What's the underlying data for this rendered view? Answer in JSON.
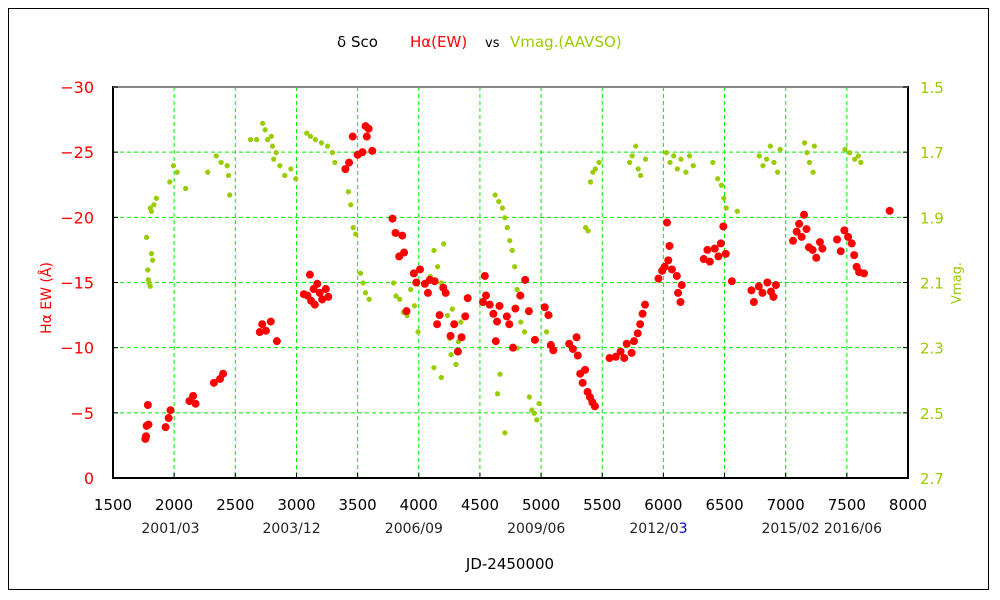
{
  "chart_data": {
    "type": "scatter",
    "title": {
      "star": "δ Sco",
      "series1": "Hα(EW)",
      "vs": "vs",
      "series2": "Vmag.(AAVSO)"
    },
    "xlabel": "JD-2450000",
    "ylabel_left": "Hα EW (Å)",
    "ylabel_right": "Vmag.",
    "xlim": [
      1500,
      8000
    ],
    "ylim_left": [
      0,
      -30
    ],
    "ylim_right": [
      2.7,
      1.5
    ],
    "grid": true,
    "x_ticks": [
      "1500",
      "2000",
      "2500",
      "3000",
      "3500",
      "4000",
      "4500",
      "5000",
      "5500",
      "6000",
      "6500",
      "7000",
      "7500",
      "8000"
    ],
    "x_tick_values": [
      1500,
      2000,
      2500,
      3000,
      3500,
      4000,
      4500,
      5000,
      5500,
      6000,
      6500,
      7000,
      7500,
      8000
    ],
    "y_left_ticks": [
      "-30",
      "-25",
      "-20",
      "-15",
      "-10",
      "-5",
      "0"
    ],
    "y_left_tick_values": [
      -30,
      -25,
      -20,
      -15,
      -10,
      -5,
      0
    ],
    "y_right_ticks": [
      "1.5",
      "1.7",
      "1.9",
      "2.1",
      "2.3",
      "2.5",
      "2.7"
    ],
    "y_right_tick_values": [
      1.5,
      1.7,
      1.9,
      2.1,
      2.3,
      2.5,
      2.7
    ],
    "date_labels": [
      {
        "jd": 1970,
        "text": "2001/03"
      },
      {
        "jd": 2960,
        "text": "2003/12"
      },
      {
        "jd": 3960,
        "text": "2006/09"
      },
      {
        "jd": 4960,
        "text": "2009/06"
      },
      {
        "jd": 5960,
        "text": "2012/03",
        "highlight_tail": "3"
      },
      {
        "jd": 7040,
        "text": "2015/02"
      },
      {
        "jd": 7550,
        "text": "2016/06"
      }
    ],
    "colors": {
      "halpha": "#ff0000",
      "vmag": "#99cc00",
      "grid": "#00ee00",
      "date_highlight": "#0000cc"
    },
    "series": [
      {
        "name": "Hα(EW)",
        "axis": "left",
        "points": [
          [
            1765,
            -3.0
          ],
          [
            1770,
            -3.2
          ],
          [
            1775,
            -4.0
          ],
          [
            1785,
            -5.6
          ],
          [
            1790,
            -4.1
          ],
          [
            1930,
            -3.9
          ],
          [
            1955,
            -4.6
          ],
          [
            1970,
            -5.2
          ],
          [
            2125,
            -5.9
          ],
          [
            2155,
            -6.3
          ],
          [
            2175,
            -5.7
          ],
          [
            2325,
            -7.3
          ],
          [
            2375,
            -7.6
          ],
          [
            2400,
            -8.0
          ],
          [
            2700,
            -11.2
          ],
          [
            2720,
            -11.8
          ],
          [
            2750,
            -11.3
          ],
          [
            2790,
            -12.0
          ],
          [
            2840,
            -10.5
          ],
          [
            3060,
            -14.1
          ],
          [
            3090,
            -14.0
          ],
          [
            3110,
            -15.6
          ],
          [
            3120,
            -13.6
          ],
          [
            3140,
            -14.5
          ],
          [
            3150,
            -13.3
          ],
          [
            3170,
            -14.9
          ],
          [
            3190,
            -14.2
          ],
          [
            3210,
            -13.7
          ],
          [
            3240,
            -14.5
          ],
          [
            3260,
            -13.9
          ],
          [
            3400,
            -23.7
          ],
          [
            3430,
            -24.2
          ],
          [
            3460,
            -26.2
          ],
          [
            3500,
            -24.8
          ],
          [
            3540,
            -25.0
          ],
          [
            3565,
            -27.0
          ],
          [
            3575,
            -26.2
          ],
          [
            3590,
            -26.8
          ],
          [
            3620,
            -25.1
          ],
          [
            3785,
            -19.9
          ],
          [
            3810,
            -18.8
          ],
          [
            3840,
            -17.0
          ],
          [
            3865,
            -18.6
          ],
          [
            3880,
            -17.3
          ],
          [
            3900,
            -12.8
          ],
          [
            3960,
            -15.7
          ],
          [
            3980,
            -15.0
          ],
          [
            4010,
            -16.0
          ],
          [
            4050,
            -14.9
          ],
          [
            4075,
            -14.2
          ],
          [
            4090,
            -15.2
          ],
          [
            4130,
            -15.1
          ],
          [
            4150,
            -11.8
          ],
          [
            4170,
            -12.5
          ],
          [
            4200,
            -14.6
          ],
          [
            4220,
            -14.2
          ],
          [
            4260,
            -10.9
          ],
          [
            4290,
            -11.8
          ],
          [
            4320,
            -9.7
          ],
          [
            4350,
            -10.8
          ],
          [
            4380,
            -12.4
          ],
          [
            4400,
            -13.8
          ],
          [
            4525,
            -13.5
          ],
          [
            4540,
            -15.5
          ],
          [
            4550,
            -14.0
          ],
          [
            4580,
            -13.3
          ],
          [
            4610,
            -12.6
          ],
          [
            4630,
            -10.5
          ],
          [
            4640,
            -12.0
          ],
          [
            4660,
            -13.2
          ],
          [
            4720,
            -12.4
          ],
          [
            4740,
            -11.8
          ],
          [
            4770,
            -10.0
          ],
          [
            4790,
            -13.0
          ],
          [
            4830,
            -14.0
          ],
          [
            4870,
            -15.2
          ],
          [
            4900,
            -12.8
          ],
          [
            4950,
            -10.6
          ],
          [
            5030,
            -13.1
          ],
          [
            5060,
            -12.5
          ],
          [
            5080,
            -10.2
          ],
          [
            5100,
            -9.8
          ],
          [
            5230,
            -10.3
          ],
          [
            5260,
            -9.9
          ],
          [
            5290,
            -10.8
          ],
          [
            5300,
            -9.4
          ],
          [
            5320,
            -8.0
          ],
          [
            5340,
            -7.3
          ],
          [
            5360,
            -8.3
          ],
          [
            5380,
            -6.6
          ],
          [
            5400,
            -6.2
          ],
          [
            5420,
            -5.8
          ],
          [
            5440,
            -5.5
          ],
          [
            5560,
            -9.2
          ],
          [
            5610,
            -9.3
          ],
          [
            5650,
            -9.7
          ],
          [
            5680,
            -9.2
          ],
          [
            5700,
            -10.3
          ],
          [
            5740,
            -9.6
          ],
          [
            5760,
            -10.5
          ],
          [
            5790,
            -11.1
          ],
          [
            5810,
            -11.8
          ],
          [
            5830,
            -12.6
          ],
          [
            5850,
            -13.3
          ],
          [
            5960,
            -15.3
          ],
          [
            5990,
            -15.9
          ],
          [
            6010,
            -16.2
          ],
          [
            6040,
            -16.7
          ],
          [
            6070,
            -16.0
          ],
          [
            6030,
            -19.6
          ],
          [
            6050,
            -17.8
          ],
          [
            6110,
            -15.5
          ],
          [
            6120,
            -14.2
          ],
          [
            6140,
            -13.5
          ],
          [
            6150,
            -14.8
          ],
          [
            6330,
            -16.8
          ],
          [
            6360,
            -17.5
          ],
          [
            6380,
            -16.6
          ],
          [
            6420,
            -17.6
          ],
          [
            6450,
            -17.0
          ],
          [
            6470,
            -18.0
          ],
          [
            6490,
            -19.3
          ],
          [
            6510,
            -17.2
          ],
          [
            6560,
            -15.1
          ],
          [
            6720,
            -14.4
          ],
          [
            6740,
            -13.5
          ],
          [
            6780,
            -14.7
          ],
          [
            6810,
            -14.2
          ],
          [
            6850,
            -15.0
          ],
          [
            6880,
            -14.3
          ],
          [
            6900,
            -13.9
          ],
          [
            6920,
            -14.8
          ],
          [
            7060,
            -18.2
          ],
          [
            7090,
            -18.9
          ],
          [
            7110,
            -19.5
          ],
          [
            7130,
            -18.5
          ],
          [
            7150,
            -20.2
          ],
          [
            7170,
            -19.1
          ],
          [
            7190,
            -17.7
          ],
          [
            7220,
            -17.5
          ],
          [
            7250,
            -16.9
          ],
          [
            7280,
            -18.1
          ],
          [
            7300,
            -17.6
          ],
          [
            7420,
            -18.3
          ],
          [
            7450,
            -17.4
          ],
          [
            7480,
            -19.0
          ],
          [
            7510,
            -18.5
          ],
          [
            7540,
            -18.0
          ],
          [
            7560,
            -17.1
          ],
          [
            7580,
            -16.2
          ],
          [
            7600,
            -15.8
          ],
          [
            7640,
            -15.7
          ],
          [
            7850,
            -20.5
          ]
        ]
      },
      {
        "name": "Vmag.(AAVSO)",
        "axis": "right",
        "points": [
          [
            1770,
            1.96
          ],
          [
            1780,
            2.06
          ],
          [
            1785,
            2.09
          ],
          [
            1790,
            2.1
          ],
          [
            1800,
            2.11
          ],
          [
            1810,
            2.01
          ],
          [
            1820,
            2.03
          ],
          [
            1800,
            1.87
          ],
          [
            1810,
            1.88
          ],
          [
            1830,
            1.86
          ],
          [
            1850,
            1.84
          ],
          [
            1960,
            1.79
          ],
          [
            1990,
            1.74
          ],
          [
            2020,
            1.76
          ],
          [
            2090,
            1.81
          ],
          [
            2270,
            1.76
          ],
          [
            2340,
            1.71
          ],
          [
            2380,
            1.73
          ],
          [
            2430,
            1.74
          ],
          [
            2440,
            1.77
          ],
          [
            2450,
            1.83
          ],
          [
            2620,
            1.66
          ],
          [
            2670,
            1.66
          ],
          [
            2720,
            1.61
          ],
          [
            2740,
            1.63
          ],
          [
            2760,
            1.66
          ],
          [
            2790,
            1.65
          ],
          [
            2800,
            1.68
          ],
          [
            2810,
            1.72
          ],
          [
            2830,
            1.7
          ],
          [
            2860,
            1.74
          ],
          [
            2900,
            1.77
          ],
          [
            2950,
            1.75
          ],
          [
            2990,
            1.78
          ],
          [
            3080,
            1.64
          ],
          [
            3110,
            1.65
          ],
          [
            3150,
            1.66
          ],
          [
            3200,
            1.67
          ],
          [
            3250,
            1.68
          ],
          [
            3290,
            1.7
          ],
          [
            3310,
            1.73
          ],
          [
            3420,
            1.82
          ],
          [
            3440,
            1.86
          ],
          [
            3460,
            1.93
          ],
          [
            3480,
            1.95
          ],
          [
            3520,
            2.07
          ],
          [
            3540,
            2.1
          ],
          [
            3560,
            2.13
          ],
          [
            3590,
            2.15
          ],
          [
            3790,
            2.1
          ],
          [
            3810,
            2.14
          ],
          [
            3840,
            2.15
          ],
          [
            3870,
            2.19
          ],
          [
            3900,
            2.2
          ],
          [
            3930,
            2.12
          ],
          [
            3960,
            2.17
          ],
          [
            3990,
            2.25
          ],
          [
            4060,
            2.13
          ],
          [
            4090,
            2.08
          ],
          [
            4120,
            2.0
          ],
          [
            4150,
            2.05
          ],
          [
            4180,
            2.1
          ],
          [
            4200,
            1.98
          ],
          [
            4230,
            2.2
          ],
          [
            4250,
            2.27
          ],
          [
            4270,
            2.18
          ],
          [
            4300,
            2.35
          ],
          [
            4320,
            2.28
          ],
          [
            4340,
            2.22
          ],
          [
            4120,
            2.36
          ],
          [
            4180,
            2.39
          ],
          [
            4260,
            2.32
          ],
          [
            4620,
            1.83
          ],
          [
            4650,
            1.85
          ],
          [
            4680,
            1.87
          ],
          [
            4700,
            1.9
          ],
          [
            4720,
            1.93
          ],
          [
            4740,
            1.97
          ],
          [
            4760,
            2.0
          ],
          [
            4780,
            2.05
          ],
          [
            4800,
            2.12
          ],
          [
            4830,
            2.22
          ],
          [
            4860,
            2.25
          ],
          [
            4640,
            2.44
          ],
          [
            4660,
            2.38
          ],
          [
            4700,
            2.56
          ],
          [
            4800,
            2.3
          ],
          [
            4900,
            2.45
          ],
          [
            4920,
            2.49
          ],
          [
            4940,
            2.5
          ],
          [
            4960,
            2.52
          ],
          [
            4980,
            2.47
          ],
          [
            5040,
            2.25
          ],
          [
            5070,
            2.2
          ],
          [
            5360,
            1.93
          ],
          [
            5380,
            1.94
          ],
          [
            5400,
            1.79
          ],
          [
            5420,
            1.76
          ],
          [
            5440,
            1.75
          ],
          [
            5470,
            1.73
          ],
          [
            5720,
            1.73
          ],
          [
            5740,
            1.71
          ],
          [
            5770,
            1.68
          ],
          [
            5790,
            1.75
          ],
          [
            5810,
            1.77
          ],
          [
            5850,
            1.72
          ],
          [
            6020,
            1.7
          ],
          [
            6050,
            1.73
          ],
          [
            6080,
            1.71
          ],
          [
            6110,
            1.75
          ],
          [
            6140,
            1.72
          ],
          [
            6180,
            1.76
          ],
          [
            6210,
            1.71
          ],
          [
            6240,
            1.74
          ],
          [
            6400,
            1.73
          ],
          [
            6440,
            1.78
          ],
          [
            6470,
            1.8
          ],
          [
            6490,
            1.84
          ],
          [
            6510,
            1.87
          ],
          [
            6600,
            1.88
          ],
          [
            6780,
            1.71
          ],
          [
            6810,
            1.74
          ],
          [
            6840,
            1.72
          ],
          [
            6870,
            1.68
          ],
          [
            6900,
            1.73
          ],
          [
            6930,
            1.76
          ],
          [
            6950,
            1.69
          ],
          [
            7150,
            1.67
          ],
          [
            7170,
            1.7
          ],
          [
            7190,
            1.73
          ],
          [
            7220,
            1.76
          ],
          [
            7230,
            1.68
          ],
          [
            7480,
            1.69
          ],
          [
            7520,
            1.7
          ],
          [
            7560,
            1.72
          ],
          [
            7590,
            1.71
          ],
          [
            7610,
            1.73
          ]
        ]
      }
    ]
  }
}
